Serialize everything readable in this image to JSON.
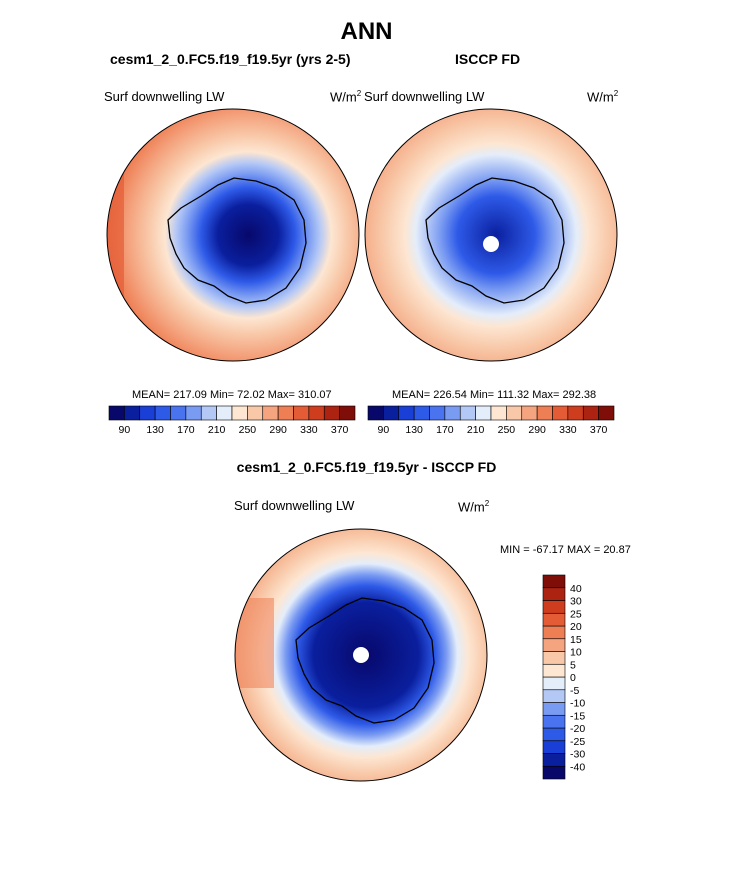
{
  "page": {
    "title": "ANN",
    "panel1_title": "cesm1_2_0.FC5.f19_f19.5yr (yrs 2-5)",
    "panel2_title": "ISCCP FD",
    "diff_title": "cesm1_2_0.FC5.f19_f19.5yr - ISCCP FD"
  },
  "chart_data": [
    {
      "type": "heatmap",
      "projection": "south-polar-stereographic",
      "title": "cesm1_2_0.FC5.f19_f19.5yr (yrs 2-5)",
      "variable": "Surf downwelling LW",
      "units": "W/m",
      "units_exponent": "2",
      "stats": {
        "mean": "217.09",
        "min": "72.02",
        "max": "310.07"
      },
      "stats_label": "MEAN= 217.09  Min=  72.02  Max= 310.07",
      "colorbar": {
        "levels": [
          90,
          110,
          130,
          150,
          170,
          190,
          210,
          230,
          250,
          270,
          290,
          310,
          330,
          350,
          370
        ],
        "tick_labels": [
          "90",
          "130",
          "170",
          "210",
          "250",
          "290",
          "330",
          "370"
        ],
        "colors": [
          "#08086b",
          "#0a1f9e",
          "#1a3fd6",
          "#2e5ae8",
          "#4a74ef",
          "#7a9bf2",
          "#b4c8f6",
          "#e4edfa",
          "#fde6d2",
          "#f8c8a8",
          "#f4a47f",
          "#ee7e54",
          "#e45c36",
          "#cf3d1f",
          "#ad2312",
          "#7f0d08"
        ]
      }
    },
    {
      "type": "heatmap",
      "projection": "south-polar-stereographic",
      "title": "ISCCP FD",
      "variable": "Surf downwelling LW",
      "units": "W/m",
      "units_exponent": "2",
      "stats": {
        "mean": "226.54",
        "min": "111.32",
        "max": "292.38"
      },
      "stats_label": "MEAN= 226.54  Min= 111.32  Max= 292.38",
      "colorbar": {
        "levels": [
          90,
          110,
          130,
          150,
          170,
          190,
          210,
          230,
          250,
          270,
          290,
          310,
          330,
          350,
          370
        ],
        "tick_labels": [
          "90",
          "130",
          "170",
          "210",
          "250",
          "290",
          "330",
          "370"
        ],
        "colors": [
          "#08086b",
          "#0a1f9e",
          "#1a3fd6",
          "#2e5ae8",
          "#4a74ef",
          "#7a9bf2",
          "#b4c8f6",
          "#e4edfa",
          "#fde6d2",
          "#f8c8a8",
          "#f4a47f",
          "#ee7e54",
          "#e45c36",
          "#cf3d1f",
          "#ad2312",
          "#7f0d08"
        ]
      }
    },
    {
      "type": "heatmap",
      "projection": "south-polar-stereographic",
      "title": "cesm1_2_0.FC5.f19_f19.5yr - ISCCP FD",
      "variable": "Surf downwelling LW",
      "units": "W/m",
      "units_exponent": "2",
      "stats": {
        "min": "-67.17",
        "max": "20.87"
      },
      "stats_label": "MIN = -67.17 MAX =  20.87",
      "colorbar": {
        "orientation": "vertical",
        "levels": [
          -40,
          -30,
          -25,
          -20,
          -15,
          -10,
          -5,
          0,
          5,
          10,
          15,
          20,
          25,
          30,
          40
        ],
        "tick_labels": [
          "-40",
          "-30",
          "-25",
          "-20",
          "-15",
          "-10",
          "-5",
          "0",
          "5",
          "10",
          "15",
          "20",
          "25",
          "30",
          "40"
        ],
        "colors": [
          "#08086b",
          "#0a1f9e",
          "#1a3fd6",
          "#2e5ae8",
          "#4a74ef",
          "#7a9bf2",
          "#b4c8f6",
          "#e4edfa",
          "#fde6d2",
          "#f8c8a8",
          "#f4a47f",
          "#ee7e54",
          "#e45c36",
          "#cf3d1f",
          "#ad2312",
          "#7f0d08"
        ]
      }
    }
  ]
}
